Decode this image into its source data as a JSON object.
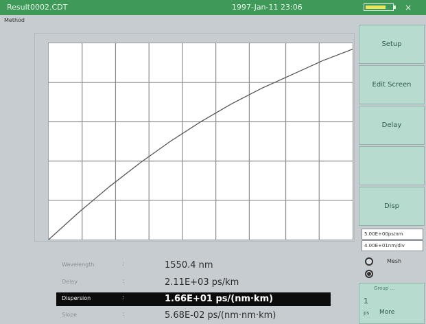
{
  "titlebar": {
    "title": "Result0002.CDT",
    "datetime": "1997-Jan-11 23:06",
    "battery_level": 0.75,
    "close_glyph": "×"
  },
  "method": "Method",
  "sidebar": {
    "setup": "Setup",
    "edit_screen": "Edit Screen",
    "delay": "Delay",
    "disp": "Disp",
    "field1": "5.00E+00ps/nm",
    "field2": "4.00E+01nm/div",
    "radio_label": "Mesh"
  },
  "bottom_panel": {
    "header": "Group ...",
    "number": "1",
    "unit": "ps",
    "more": "More"
  },
  "results": [
    {
      "key": "Wavelength",
      "colon": ":",
      "value": "1550.4 nm",
      "selected": false
    },
    {
      "key": "Delay",
      "colon": ":",
      "value": "2.11E+03 ps/km",
      "selected": false
    },
    {
      "key": "Dispersion",
      "colon": ":",
      "value": "1.66E+01 ps/(nm·km)",
      "selected": true
    },
    {
      "key": "Slope",
      "colon": ":",
      "value": "5.68E-02 ps/(nm·nm·km)",
      "selected": false
    }
  ],
  "chart_data": {
    "type": "line",
    "x": [
      0,
      0.1,
      0.2,
      0.3,
      0.4,
      0.5,
      0.6,
      0.7,
      0.8,
      0.9,
      1.0
    ],
    "y": [
      0.0,
      0.14,
      0.27,
      0.39,
      0.5,
      0.6,
      0.69,
      0.77,
      0.84,
      0.91,
      0.97
    ],
    "grid": true,
    "xlim": [
      0,
      1
    ],
    "ylim": [
      0,
      1
    ]
  }
}
